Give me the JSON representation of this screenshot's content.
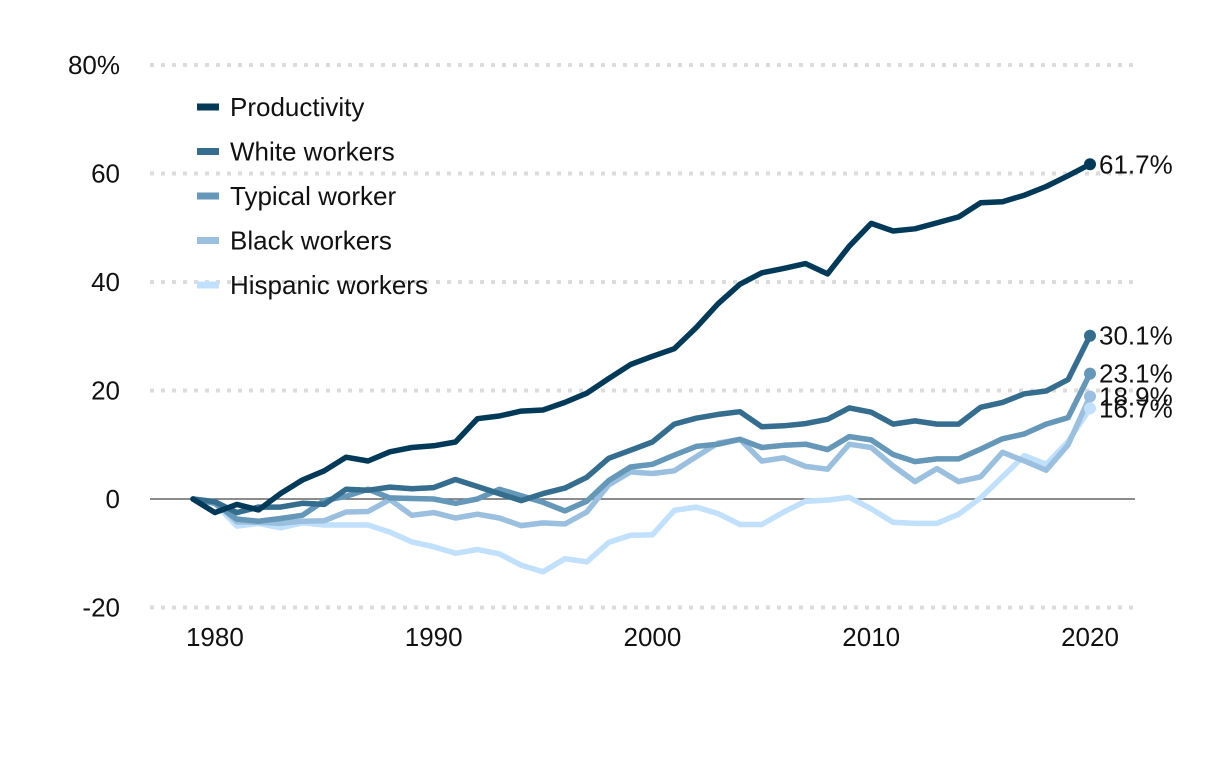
{
  "chart_data": {
    "type": "line",
    "title": "",
    "xlabel": "",
    "ylabel": "",
    "ylim": [
      -20,
      80
    ],
    "xlim": [
      1977,
      2022
    ],
    "grid": true,
    "legend_position": "top-left",
    "y_ticks": [
      {
        "value": -20,
        "label": "-20"
      },
      {
        "value": 0,
        "label": "0"
      },
      {
        "value": 20,
        "label": "20"
      },
      {
        "value": 40,
        "label": "40"
      },
      {
        "value": 60,
        "label": "60"
      },
      {
        "value": 80,
        "label": "80%"
      }
    ],
    "x_ticks": [
      {
        "value": 1980,
        "label": "1980"
      },
      {
        "value": 1990,
        "label": "1990"
      },
      {
        "value": 2000,
        "label": "2000"
      },
      {
        "value": 2010,
        "label": "2010"
      },
      {
        "value": 2020,
        "label": "2020"
      }
    ],
    "x": [
      1979,
      1980,
      1981,
      1982,
      1983,
      1984,
      1985,
      1986,
      1987,
      1988,
      1989,
      1990,
      1991,
      1992,
      1993,
      1994,
      1995,
      1996,
      1997,
      1998,
      1999,
      2000,
      2001,
      2002,
      2003,
      2004,
      2005,
      2006,
      2007,
      2008,
      2009,
      2010,
      2011,
      2012,
      2013,
      2014,
      2015,
      2016,
      2017,
      2018,
      2019,
      2020
    ],
    "series": [
      {
        "name": "Productivity",
        "color": "#003a58",
        "end_label": "61.7%",
        "values": [
          0,
          -2.5,
          -1,
          -2,
          1,
          3.5,
          5.2,
          7.7,
          7,
          8.7,
          9.5,
          9.8,
          10.5,
          14.8,
          15.3,
          16.2,
          16.4,
          17.8,
          19.5,
          22.2,
          24.8,
          26.3,
          27.7,
          31.6,
          36,
          39.6,
          41.7,
          42.5,
          43.4,
          41.5,
          46.6,
          50.8,
          49.4,
          49.8,
          50.9,
          52,
          54.6,
          54.8,
          56,
          57.6,
          59.6,
          61.7
        ]
      },
      {
        "name": "White workers",
        "color": "#356d8f",
        "end_label": "30.1%",
        "values": [
          0,
          -0.5,
          -2.5,
          -1.5,
          -1.5,
          -0.8,
          -1,
          1.8,
          1.6,
          2.2,
          1.9,
          2.1,
          3.6,
          2.3,
          1,
          -0.3,
          1,
          2,
          4,
          7.5,
          9,
          10.5,
          13.8,
          14.9,
          15.6,
          16.1,
          13.3,
          13.5,
          13.9,
          14.7,
          16.8,
          16,
          13.8,
          14.4,
          13.8,
          13.8,
          16.9,
          17.8,
          19.4,
          19.9,
          22,
          30.1
        ]
      },
      {
        "name": "Typical worker",
        "color": "#6597b8",
        "end_label": "23.1%",
        "values": [
          0,
          -0.8,
          -3.7,
          -4.1,
          -3.6,
          -3,
          -0.3,
          0.5,
          1.8,
          0.2,
          0.1,
          0,
          -0.8,
          0,
          1.8,
          0.6,
          -0.6,
          -2.2,
          -0.4,
          3.4,
          5.9,
          6.4,
          8.1,
          9.7,
          10.1,
          11,
          9.5,
          9.9,
          10.1,
          9.1,
          11.5,
          10.9,
          8.2,
          6.9,
          7.4,
          7.4,
          9.2,
          11.1,
          12,
          13.8,
          15,
          23.1
        ]
      },
      {
        "name": "Black workers",
        "color": "#9bc0df",
        "end_label": "18.9%",
        "values": [
          0,
          -0.5,
          -4.2,
          -4.3,
          -4.5,
          -4.1,
          -4,
          -2.4,
          -2.3,
          -0.1,
          -3,
          -2.5,
          -3.5,
          -2.8,
          -3.5,
          -4.9,
          -4.4,
          -4.6,
          -2.4,
          2.6,
          5,
          4.7,
          5.2,
          7.8,
          10.3,
          11,
          7,
          7.6,
          6,
          5.5,
          10.1,
          9.5,
          6.1,
          3.2,
          5.6,
          3.2,
          4.1,
          8.6,
          7,
          5.3,
          10,
          18.9
        ]
      },
      {
        "name": "Hispanic workers",
        "color": "#c0e0fb",
        "end_label": "16.7%",
        "values": [
          0,
          -0.8,
          -5,
          -4.5,
          -5.3,
          -4.4,
          -4.8,
          -4.8,
          -4.8,
          -6.1,
          -7.9,
          -8.8,
          -10,
          -9.3,
          -10.1,
          -12.2,
          -13.4,
          -11,
          -11.6,
          -8,
          -6.7,
          -6.6,
          -2.1,
          -1.5,
          -2.7,
          -4.7,
          -4.7,
          -2.4,
          -0.4,
          -0.2,
          0.3,
          -1.8,
          -4.3,
          -4.5,
          -4.5,
          -2.8,
          0.2,
          4.1,
          8,
          6.4,
          10.6,
          16.7
        ]
      }
    ]
  }
}
